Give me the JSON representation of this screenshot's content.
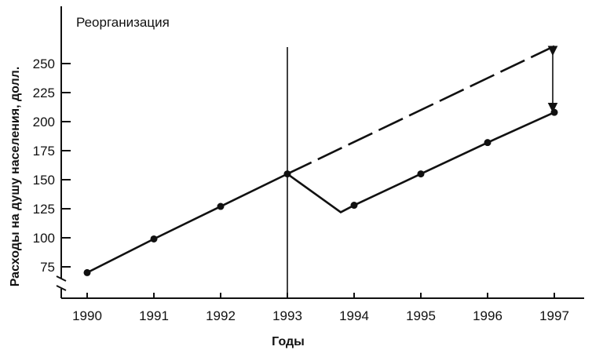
{
  "chart_data": {
    "type": "line",
    "title": "",
    "xlabel": "Годы",
    "ylabel": "Расходы на душу населения, долл.",
    "x_ticks": [
      "1990",
      "1991",
      "1992",
      "1993",
      "1994",
      "1995",
      "1996",
      "1997"
    ],
    "y_ticks": [
      "75",
      "100",
      "125",
      "150",
      "175",
      "200",
      "225",
      "250"
    ],
    "xlim": [
      1990,
      1997
    ],
    "ylim": [
      50,
      270
    ],
    "y_axis_break": true,
    "grid": false,
    "annotation": {
      "text": "Реорганизация",
      "x": 1993
    },
    "series": [
      {
        "style": "solid",
        "markers": true,
        "points": [
          {
            "x": 1990,
            "y": 70,
            "marker": true
          },
          {
            "x": 1991,
            "y": 99,
            "marker": true
          },
          {
            "x": 1992,
            "y": 127,
            "marker": true
          },
          {
            "x": 1993,
            "y": 155,
            "marker": true
          },
          {
            "x": 1993.8,
            "y": 122,
            "marker": false
          },
          {
            "x": 1994,
            "y": 128,
            "marker": true
          },
          {
            "x": 1995,
            "y": 155,
            "marker": true
          },
          {
            "x": 1996,
            "y": 182,
            "marker": true
          },
          {
            "x": 1997,
            "y": 208,
            "marker": true
          }
        ]
      },
      {
        "style": "dashed",
        "markers": false,
        "points": [
          {
            "x": 1993,
            "y": 155,
            "marker": false
          },
          {
            "x": 1997,
            "y": 265,
            "marker": false
          }
        ]
      }
    ],
    "difference_arrow": {
      "x": 1997,
      "from": 265,
      "to": 208
    }
  }
}
